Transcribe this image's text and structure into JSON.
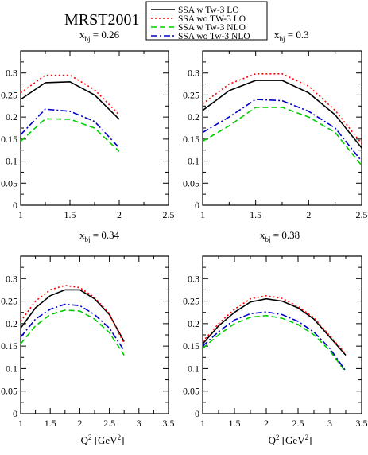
{
  "figure": {
    "title": "MRST2001",
    "legend_position": "top-center"
  },
  "legend": [
    {
      "name": "SSA w Tw-3 LO",
      "color": "#000000",
      "dash": "solid"
    },
    {
      "name": "SSA wo TW-3 LO",
      "color": "#ff0000",
      "dash": "dotted"
    },
    {
      "name": "SSA w Tw-3 NLO",
      "color": "#00cc00",
      "dash": "dashed"
    },
    {
      "name": "SSA wo Tw-3 NLO",
      "color": "#0000cc",
      "dash": "dashdot"
    }
  ],
  "chart_data": [
    {
      "type": "line",
      "title": "x_bj = 0.26",
      "title_main": "x",
      "title_sub": "bj",
      "title_value": " = 0.26",
      "xlabel": "",
      "xlabel_sup": "",
      "xlabel_unit": "",
      "xlim": [
        1,
        2.5
      ],
      "ylim": [
        0,
        0.35
      ],
      "xticks": [
        "1",
        "1.5",
        "2",
        "2.5"
      ],
      "yticks": [
        "0",
        "0.05",
        "0.1",
        "0.15",
        "0.2",
        "0.25",
        "0.3"
      ],
      "x": [
        1.0,
        1.25,
        1.5,
        1.75,
        2.0
      ],
      "series": [
        {
          "name": "SSA w Tw-3 LO",
          "values": [
            0.24,
            0.278,
            0.28,
            0.25,
            0.195
          ]
        },
        {
          "name": "SSA wo TW-3 LO",
          "values": [
            0.255,
            0.295,
            0.295,
            0.262,
            0.205
          ]
        },
        {
          "name": "SSA w Tw-3 NLO",
          "values": [
            0.145,
            0.196,
            0.195,
            0.175,
            0.122
          ]
        },
        {
          "name": "SSA wo Tw-3 NLO",
          "values": [
            0.16,
            0.218,
            0.213,
            0.19,
            0.13
          ]
        }
      ]
    },
    {
      "type": "line",
      "title": "x_bj = 0.3",
      "title_main": "x",
      "title_sub": "bj",
      "title_value": " = 0.3",
      "xlabel": "",
      "xlabel_sup": "",
      "xlabel_unit": "",
      "xlim": [
        1,
        2.5
      ],
      "ylim": [
        0,
        0.35
      ],
      "xticks": [
        "1",
        "1.5",
        "2",
        "2.5"
      ],
      "yticks": [
        "0",
        "0.05",
        "0.1",
        "0.15",
        "0.2",
        "0.25",
        "0.3"
      ],
      "x": [
        1.0,
        1.25,
        1.5,
        1.75,
        2.0,
        2.25,
        2.5
      ],
      "series": [
        {
          "name": "SSA w Tw-3 LO",
          "values": [
            0.215,
            0.26,
            0.283,
            0.283,
            0.255,
            0.205,
            0.13
          ]
        },
        {
          "name": "SSA wo TW-3 LO",
          "values": [
            0.23,
            0.275,
            0.298,
            0.298,
            0.27,
            0.215,
            0.14
          ]
        },
        {
          "name": "SSA w Tw-3 NLO",
          "values": [
            0.145,
            0.18,
            0.222,
            0.222,
            0.2,
            0.165,
            0.09
          ]
        },
        {
          "name": "SSA wo Tw-3 NLO",
          "values": [
            0.165,
            0.2,
            0.24,
            0.237,
            0.213,
            0.175,
            0.1
          ]
        }
      ]
    },
    {
      "type": "line",
      "title": "x_bj = 0.34",
      "title_main": "x",
      "title_sub": "bj",
      "title_value": " = 0.34",
      "xlabel": "Q^2 [GeV^2]",
      "xlabel_main": "Q",
      "xlabel_sup": "2",
      "xlabel_unit": " [GeV",
      "xlabel_unit_sup": "2",
      "xlabel_close": "]",
      "xlim": [
        1,
        3.5
      ],
      "ylim": [
        0,
        0.35
      ],
      "xticks": [
        "1",
        "1.5",
        "2",
        "2.5",
        "3",
        "3.5"
      ],
      "yticks": [
        "0",
        "0.05",
        "0.1",
        "0.15",
        "0.2",
        "0.25",
        "0.3"
      ],
      "x": [
        1.0,
        1.25,
        1.5,
        1.75,
        2.0,
        2.25,
        2.5,
        2.75
      ],
      "series": [
        {
          "name": "SSA w Tw-3 LO",
          "values": [
            0.19,
            0.235,
            0.262,
            0.275,
            0.275,
            0.255,
            0.22,
            0.16
          ]
        },
        {
          "name": "SSA wo TW-3 LO",
          "values": [
            0.205,
            0.25,
            0.275,
            0.285,
            0.28,
            0.258,
            0.222,
            0.155
          ]
        },
        {
          "name": "SSA w Tw-3 NLO",
          "values": [
            0.155,
            0.195,
            0.22,
            0.23,
            0.228,
            0.21,
            0.18,
            0.13
          ]
        },
        {
          "name": "SSA wo Tw-3 NLO",
          "values": [
            0.17,
            0.21,
            0.232,
            0.243,
            0.24,
            0.22,
            0.19,
            0.14
          ]
        }
      ]
    },
    {
      "type": "line",
      "title": "x_bj = 0.38",
      "title_main": "x",
      "title_sub": "bj",
      "title_value": " = 0.38",
      "xlabel": "Q^2 [GeV^2]",
      "xlabel_main": "Q",
      "xlabel_sup": "2",
      "xlabel_unit": " [GeV",
      "xlabel_unit_sup": "2",
      "xlabel_close": "]",
      "xlim": [
        1,
        3.5
      ],
      "ylim": [
        0,
        0.35
      ],
      "xticks": [
        "1",
        "1.5",
        "2",
        "2.5",
        "3",
        "3.5"
      ],
      "yticks": [
        "0",
        "0.05",
        "0.1",
        "0.15",
        "0.2",
        "0.25",
        "0.3"
      ],
      "x": [
        1.0,
        1.25,
        1.5,
        1.75,
        2.0,
        2.25,
        2.5,
        2.75,
        3.0,
        3.25
      ],
      "series": [
        {
          "name": "SSA w Tw-3 LO",
          "values": [
            0.155,
            0.195,
            0.225,
            0.248,
            0.255,
            0.25,
            0.235,
            0.21,
            0.17,
            0.13
          ]
        },
        {
          "name": "SSA wo TW-3 LO",
          "values": [
            0.16,
            0.2,
            0.232,
            0.255,
            0.262,
            0.256,
            0.238,
            0.213,
            0.173,
            0.133
          ]
        },
        {
          "name": "SSA w Tw-3 NLO",
          "values": [
            0.145,
            0.175,
            0.2,
            0.214,
            0.218,
            0.212,
            0.198,
            0.175,
            0.14,
            0.092
          ]
        },
        {
          "name": "SSA wo Tw-3 NLO",
          "values": [
            0.15,
            0.182,
            0.208,
            0.222,
            0.226,
            0.22,
            0.205,
            0.181,
            0.145,
            0.095
          ]
        }
      ]
    }
  ]
}
